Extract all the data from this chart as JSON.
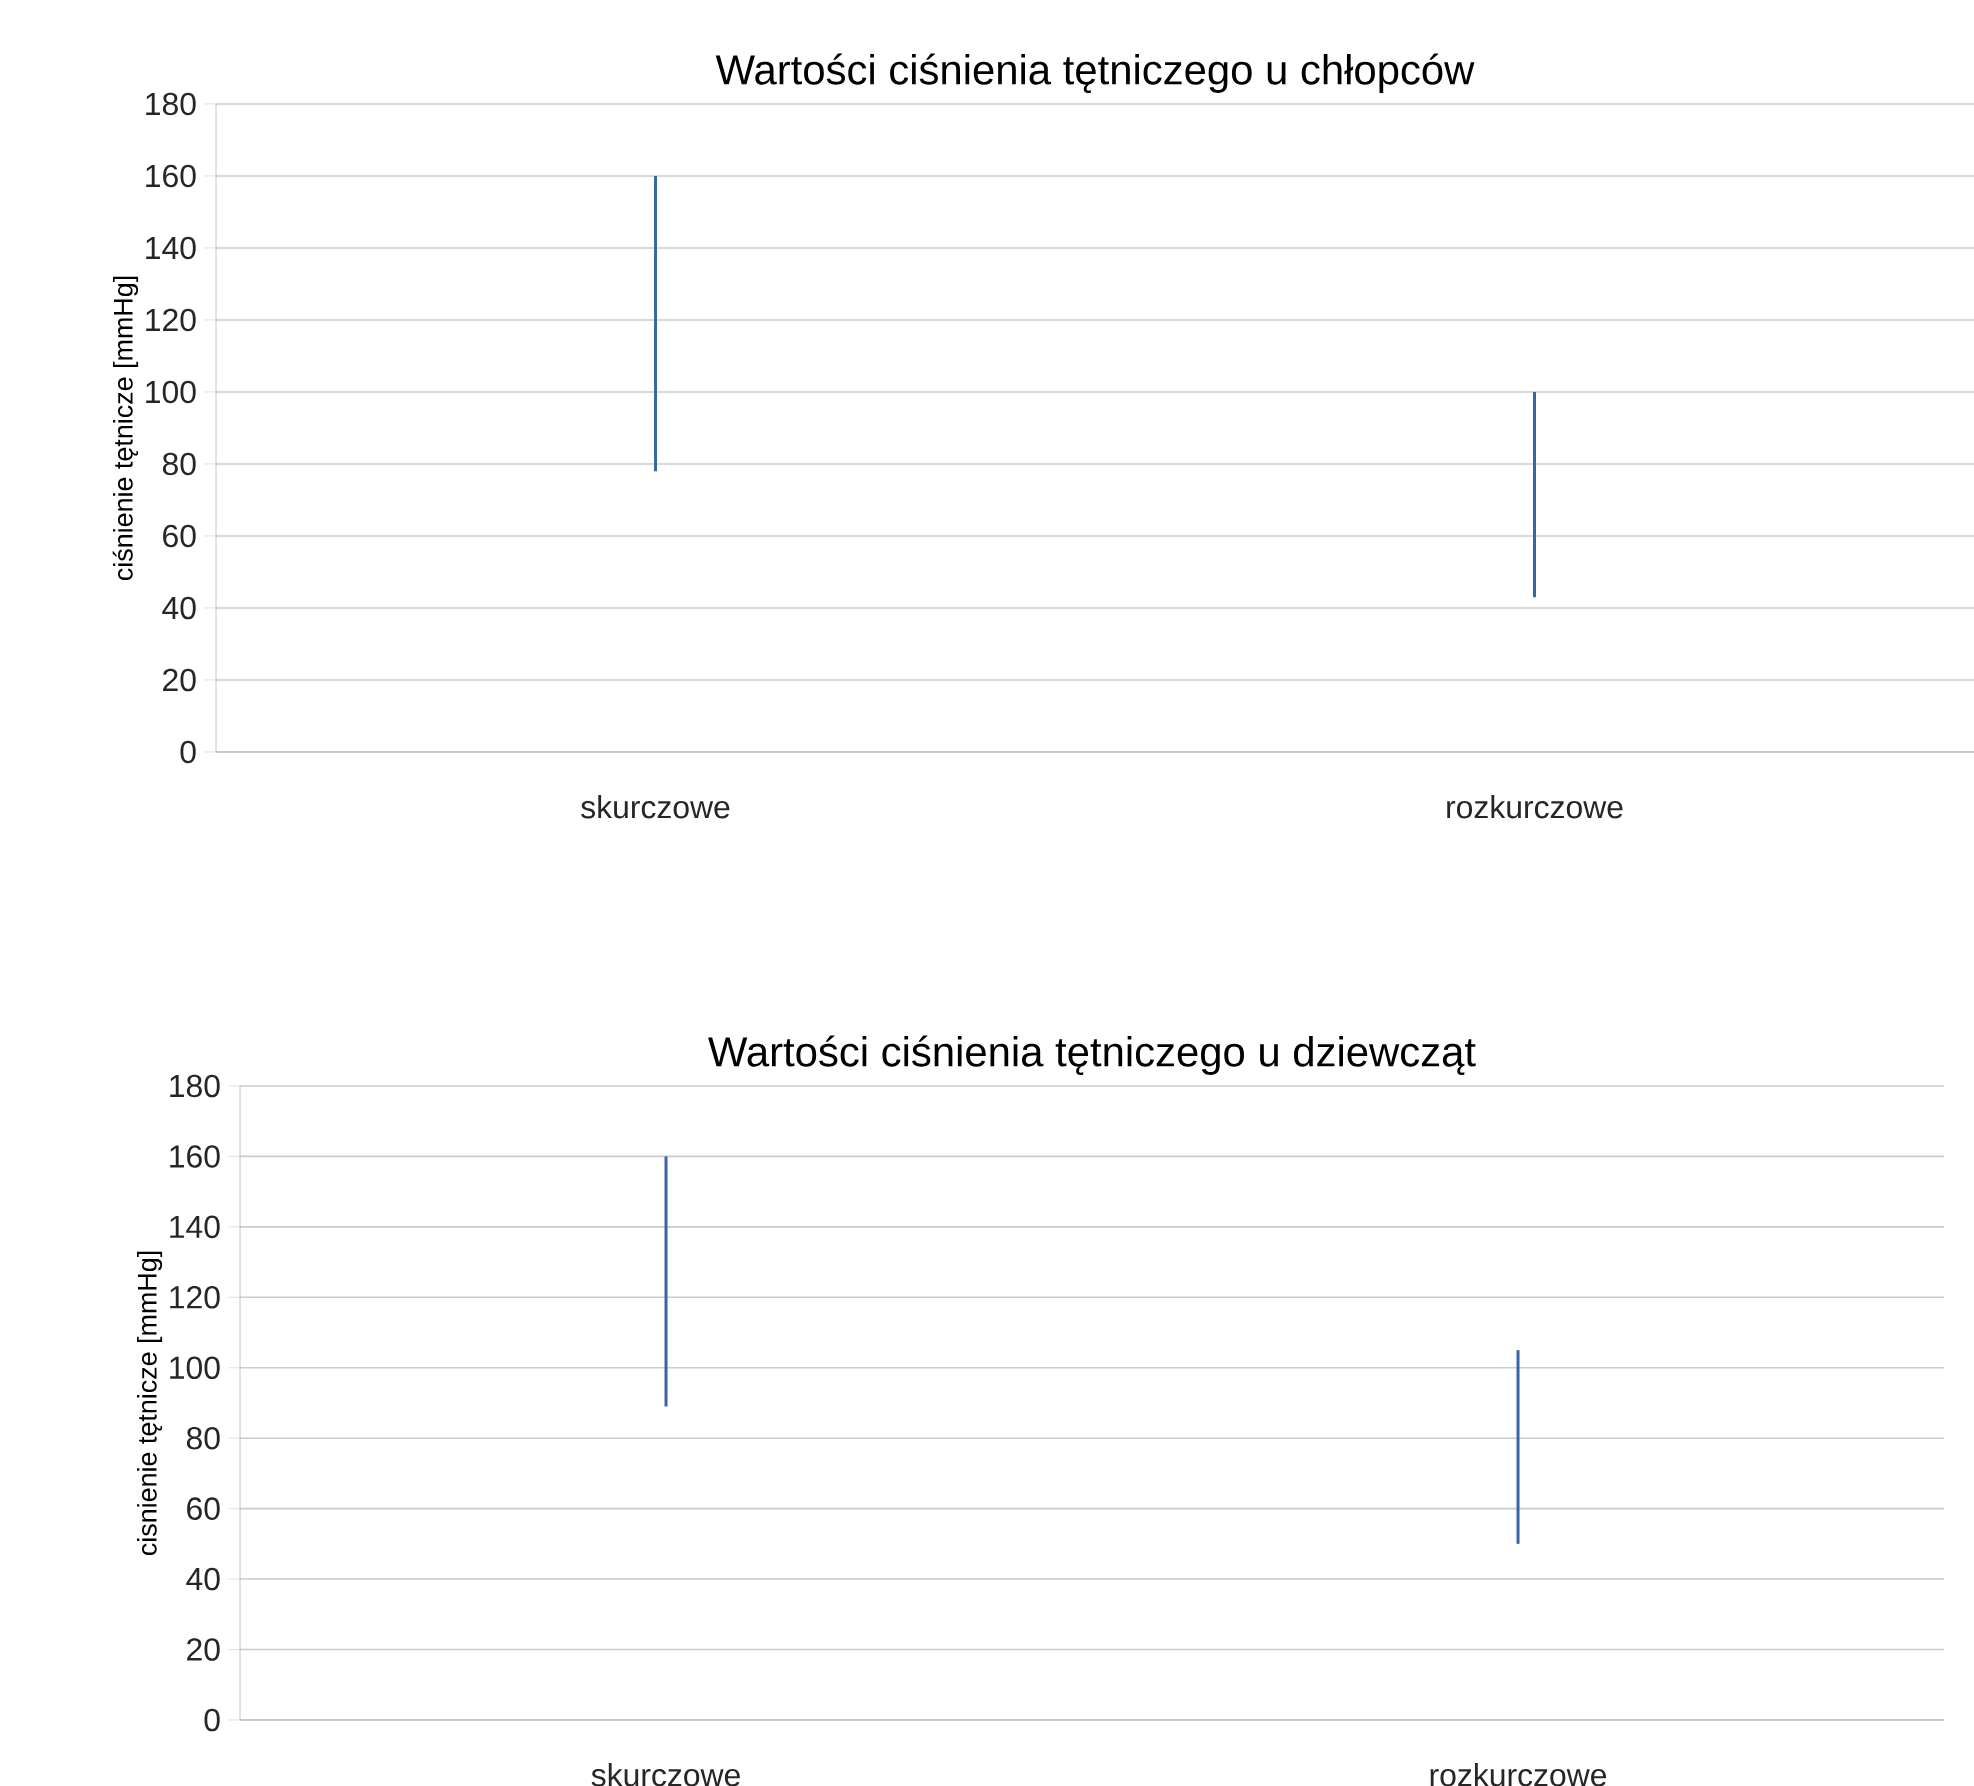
{
  "chart_data": [
    {
      "type": "bar",
      "title": "Wartości ciśnienia tętniczego u chłopców",
      "ylabel": "ciśnienie tętnicze [mmHg]",
      "categories": [
        "skurczowe",
        "rozkurczowe"
      ],
      "base": [
        78,
        43
      ],
      "values": [
        82,
        57
      ],
      "color": "#3a64a8",
      "ylim": [
        0,
        180
      ],
      "yticks": [
        0,
        20,
        40,
        60,
        80,
        100,
        120,
        140,
        160,
        180
      ],
      "grid": "y"
    },
    {
      "type": "bar",
      "title": "Wartości ciśnienia tętniczego u dziewcząt",
      "ylabel": "cisnienie tętnicze [mmHg]",
      "categories": [
        "skurczowe",
        "rozkurczowe"
      ],
      "base": [
        89,
        50
      ],
      "values": [
        71,
        55
      ],
      "color": "#3a64a8",
      "ylim": [
        0,
        180
      ],
      "yticks": [
        0,
        20,
        40,
        60,
        80,
        100,
        120,
        140,
        160,
        180
      ],
      "grid": "y"
    }
  ]
}
